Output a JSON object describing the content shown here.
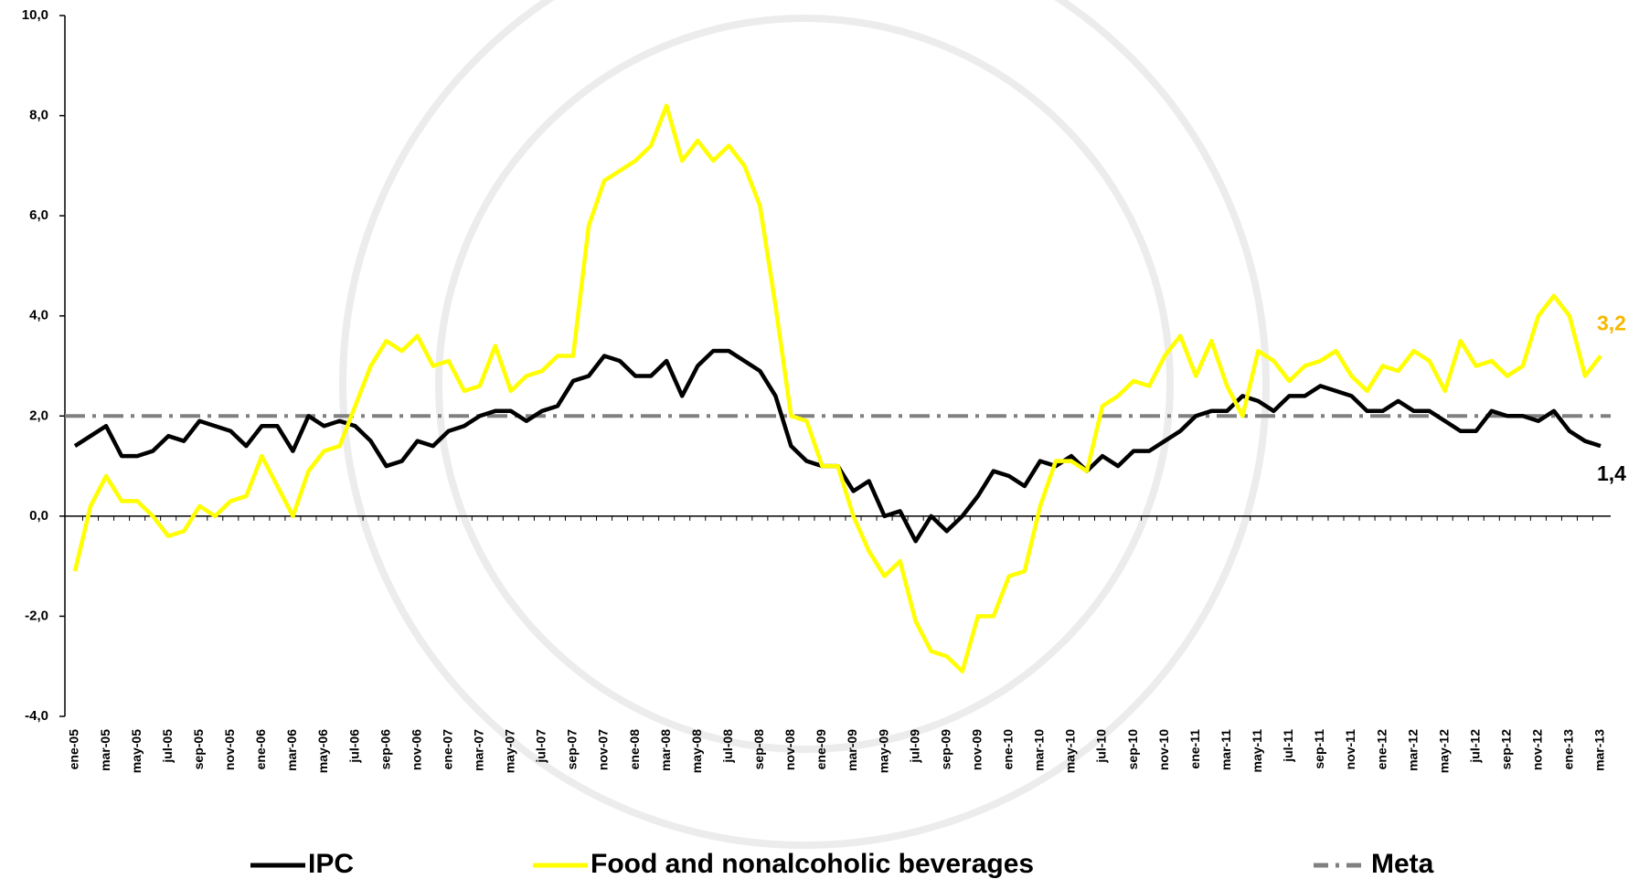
{
  "chart_data": {
    "type": "line",
    "categories": [
      "ene-05",
      null,
      "mar-05",
      null,
      "may-05",
      null,
      "jul-05",
      null,
      "sep-05",
      null,
      "nov-05",
      null,
      "ene-06",
      null,
      "mar-06",
      null,
      "may-06",
      null,
      "jul-06",
      null,
      "sep-06",
      null,
      "nov-06",
      null,
      "ene-07",
      null,
      "mar-07",
      null,
      "may-07",
      null,
      "jul-07",
      null,
      "sep-07",
      null,
      "nov-07",
      null,
      "ene-08",
      null,
      "mar-08",
      null,
      "may-08",
      null,
      "jul-08",
      null,
      "sep-08",
      null,
      "nov-08",
      null,
      "ene-09",
      null,
      "mar-09",
      null,
      "may-09",
      null,
      "jul-09",
      null,
      "sep-09",
      null,
      "nov-09",
      null,
      "ene-10",
      null,
      "mar-10",
      null,
      "may-10",
      null,
      "jul-10",
      null,
      "sep-10",
      null,
      "nov-10",
      null,
      "ene-11",
      null,
      "mar-11",
      null,
      "may-11",
      null,
      "jul-11",
      null,
      "sep-11",
      null,
      "nov-11",
      null,
      "ene-12",
      null,
      "mar-12",
      null,
      "may-12",
      null,
      "jul-12",
      null,
      "sep-12",
      null,
      "nov-12",
      null,
      "ene-13",
      null,
      "mar-13"
    ],
    "series": [
      {
        "name": "IPC",
        "color": "#000000",
        "values": [
          1.4,
          1.6,
          1.8,
          1.2,
          1.2,
          1.3,
          1.6,
          1.5,
          1.9,
          1.8,
          1.7,
          1.4,
          1.8,
          1.8,
          1.3,
          2.0,
          1.8,
          1.9,
          1.8,
          1.5,
          1.0,
          1.1,
          1.5,
          1.4,
          1.7,
          1.8,
          2.0,
          2.1,
          2.1,
          1.9,
          2.1,
          2.2,
          2.7,
          2.8,
          3.2,
          3.1,
          2.8,
          2.8,
          3.1,
          2.4,
          3.0,
          3.3,
          3.3,
          3.1,
          2.9,
          2.4,
          1.4,
          1.1,
          1.0,
          1.0,
          0.5,
          0.7,
          0.0,
          0.1,
          -0.5,
          0.0,
          -0.3,
          0.0,
          0.4,
          0.9,
          0.8,
          0.6,
          1.1,
          1.0,
          1.2,
          0.9,
          1.2,
          1.0,
          1.3,
          1.3,
          1.5,
          1.7,
          2.0,
          2.1,
          2.1,
          2.4,
          2.3,
          2.1,
          2.4,
          2.4,
          2.6,
          2.5,
          2.4,
          2.1,
          2.1,
          2.3,
          2.1,
          2.1,
          1.9,
          1.7,
          1.7,
          2.1,
          2.0,
          2.0,
          1.9,
          2.1,
          1.7,
          1.5,
          1.4
        ],
        "value_labels": [
          null,
          null,
          null,
          null,
          null,
          null,
          null,
          null,
          null,
          null,
          null,
          null,
          null,
          null,
          null,
          null,
          null,
          null,
          null,
          null,
          null,
          null,
          null,
          null,
          null,
          null,
          null,
          null,
          null,
          null,
          null,
          null,
          null,
          null,
          null,
          null,
          null,
          null,
          null,
          null,
          null,
          null,
          null,
          null,
          null,
          null,
          null,
          null,
          null,
          null,
          null,
          null,
          null,
          null,
          null,
          null,
          null,
          null,
          null,
          null,
          null,
          null,
          null,
          null,
          null,
          null,
          null,
          null,
          null,
          null,
          null,
          null,
          null,
          null,
          null,
          null,
          null,
          null,
          null,
          null,
          null,
          null,
          null,
          null,
          null,
          null,
          null,
          null,
          null,
          null,
          null,
          null,
          null,
          null,
          null,
          null,
          null,
          null,
          "1,4"
        ]
      },
      {
        "name": "Food and nonalcoholic beverages",
        "color": "#ffff00",
        "label_color": "#f5b800",
        "values": [
          -1.1,
          0.2,
          0.8,
          0.3,
          0.3,
          0.0,
          -0.4,
          -0.3,
          0.2,
          0.0,
          0.3,
          0.4,
          1.2,
          0.6,
          0.0,
          0.9,
          1.3,
          1.4,
          2.2,
          3.0,
          3.5,
          3.3,
          3.6,
          3.0,
          3.1,
          2.5,
          2.6,
          3.4,
          2.5,
          2.8,
          2.9,
          3.2,
          3.2,
          5.8,
          6.7,
          6.9,
          7.1,
          7.4,
          8.2,
          7.1,
          7.5,
          7.1,
          7.4,
          7.0,
          6.2,
          4.2,
          2.0,
          1.9,
          1.0,
          1.0,
          0.0,
          -0.7,
          -1.2,
          -0.9,
          -2.1,
          -2.7,
          -2.8,
          -3.1,
          -2.0,
          -2.0,
          -1.2,
          -1.1,
          0.2,
          1.1,
          1.1,
          0.9,
          2.2,
          2.4,
          2.7,
          2.6,
          3.2,
          3.6,
          2.8,
          3.5,
          2.6,
          2.0,
          3.3,
          3.1,
          2.7,
          3.0,
          3.1,
          3.3,
          2.8,
          2.5,
          3.0,
          2.9,
          3.3,
          3.1,
          2.5,
          3.5,
          3.0,
          3.1,
          2.8,
          3.0,
          4.0,
          4.4,
          4.0,
          2.8,
          3.2
        ],
        "value_labels": [
          null,
          null,
          null,
          null,
          null,
          null,
          null,
          null,
          null,
          null,
          null,
          null,
          null,
          null,
          null,
          null,
          null,
          null,
          null,
          null,
          null,
          null,
          null,
          null,
          null,
          null,
          null,
          null,
          null,
          null,
          null,
          null,
          null,
          null,
          null,
          null,
          null,
          null,
          null,
          null,
          null,
          null,
          null,
          null,
          null,
          null,
          null,
          null,
          null,
          null,
          null,
          null,
          null,
          null,
          null,
          null,
          null,
          null,
          null,
          null,
          null,
          null,
          null,
          null,
          null,
          null,
          null,
          null,
          null,
          null,
          null,
          null,
          null,
          null,
          null,
          null,
          null,
          null,
          null,
          null,
          null,
          null,
          null,
          null,
          null,
          null,
          null,
          null,
          null,
          null,
          null,
          null,
          null,
          null,
          null,
          null,
          null,
          null,
          "3,2"
        ]
      }
    ],
    "reference_line": {
      "name": "Meta",
      "value": 2,
      "color": "#808080"
    },
    "ylim": [
      -4,
      10
    ],
    "yticks": [
      {
        "value": -4,
        "label": "-4,0"
      },
      {
        "value": -2,
        "label": "-2,0"
      },
      {
        "value": 0,
        "label": "0,0"
      },
      {
        "value": 2,
        "label": "2,0"
      },
      {
        "value": 4,
        "label": "4,0"
      },
      {
        "value": 6,
        "label": "6,0"
      },
      {
        "value": 8,
        "label": "8,0"
      },
      {
        "value": 10,
        "label": "10,0"
      }
    ],
    "legend": "bottom"
  }
}
